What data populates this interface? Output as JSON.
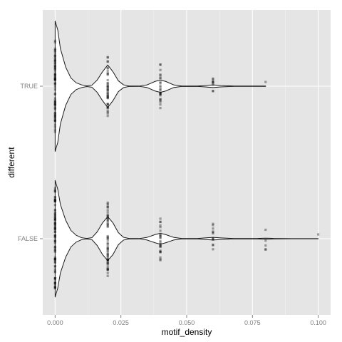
{
  "chart_data": {
    "type": "violin",
    "orientation": "horizontal",
    "xlabel": "motif_density",
    "ylabel": "different",
    "xlim": [
      -0.0047,
      0.1047
    ],
    "x_ticks": [
      0.0,
      0.025,
      0.05,
      0.075,
      0.1
    ],
    "x_tick_labels": [
      "0.000",
      "0.025",
      "0.050",
      "0.075",
      "0.100"
    ],
    "categories": [
      "TRUE",
      "FALSE"
    ],
    "grid": true,
    "panel_background": "#e5e5e5",
    "grid_color": "#ffffff",
    "violins": [
      {
        "category": "TRUE",
        "x_range": [
          0.0,
          0.08
        ],
        "density_profile": [
          [
            0.0,
            0.95
          ],
          [
            0.001,
            0.82
          ],
          [
            0.002,
            0.55
          ],
          [
            0.004,
            0.28
          ],
          [
            0.006,
            0.12
          ],
          [
            0.008,
            0.05
          ],
          [
            0.01,
            0.02
          ],
          [
            0.012,
            0.005
          ],
          [
            0.014,
            0.015
          ],
          [
            0.016,
            0.09
          ],
          [
            0.018,
            0.21
          ],
          [
            0.02,
            0.31
          ],
          [
            0.022,
            0.21
          ],
          [
            0.024,
            0.08
          ],
          [
            0.026,
            0.02
          ],
          [
            0.028,
            0.004
          ],
          [
            0.032,
            0.002
          ],
          [
            0.035,
            0.02
          ],
          [
            0.038,
            0.07
          ],
          [
            0.04,
            0.09
          ],
          [
            0.042,
            0.07
          ],
          [
            0.045,
            0.02
          ],
          [
            0.048,
            0.004
          ],
          [
            0.054,
            0.002
          ],
          [
            0.057,
            0.01
          ],
          [
            0.06,
            0.02
          ],
          [
            0.063,
            0.01
          ],
          [
            0.068,
            0.002
          ],
          [
            0.08,
            0.002
          ]
        ],
        "points": [
          {
            "x": 0.0,
            "n": 70
          },
          {
            "x": 0.02,
            "n": 40
          },
          {
            "x": 0.04,
            "n": 25
          },
          {
            "x": 0.06,
            "n": 9
          },
          {
            "x": 0.08,
            "n": 1
          }
        ]
      },
      {
        "category": "FALSE",
        "x_range": [
          0.0,
          0.1
        ],
        "density_profile": [
          [
            0.0,
            0.85
          ],
          [
            0.001,
            0.72
          ],
          [
            0.002,
            0.5
          ],
          [
            0.004,
            0.27
          ],
          [
            0.006,
            0.12
          ],
          [
            0.008,
            0.05
          ],
          [
            0.01,
            0.015
          ],
          [
            0.012,
            0.004
          ],
          [
            0.014,
            0.015
          ],
          [
            0.016,
            0.1
          ],
          [
            0.018,
            0.23
          ],
          [
            0.02,
            0.32
          ],
          [
            0.022,
            0.23
          ],
          [
            0.024,
            0.09
          ],
          [
            0.026,
            0.02
          ],
          [
            0.028,
            0.004
          ],
          [
            0.032,
            0.002
          ],
          [
            0.035,
            0.02
          ],
          [
            0.038,
            0.06
          ],
          [
            0.04,
            0.08
          ],
          [
            0.042,
            0.06
          ],
          [
            0.045,
            0.02
          ],
          [
            0.048,
            0.004
          ],
          [
            0.054,
            0.003
          ],
          [
            0.057,
            0.012
          ],
          [
            0.06,
            0.02
          ],
          [
            0.063,
            0.012
          ],
          [
            0.068,
            0.002
          ],
          [
            0.077,
            0.004
          ],
          [
            0.08,
            0.008
          ],
          [
            0.083,
            0.004
          ],
          [
            0.09,
            0.001
          ],
          [
            0.1,
            0.001
          ]
        ],
        "points": [
          {
            "x": 0.0,
            "n": 80
          },
          {
            "x": 0.02,
            "n": 55
          },
          {
            "x": 0.04,
            "n": 25
          },
          {
            "x": 0.06,
            "n": 12
          },
          {
            "x": 0.08,
            "n": 5
          },
          {
            "x": 0.1,
            "n": 1
          }
        ]
      }
    ]
  }
}
